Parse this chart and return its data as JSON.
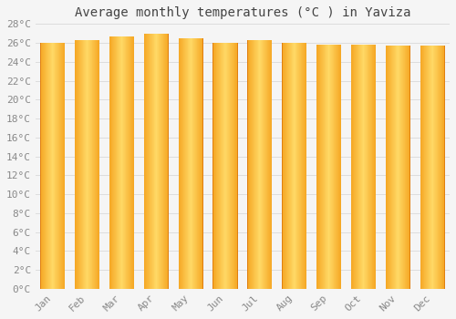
{
  "title": "Average monthly temperatures (°C ) in Yaviza",
  "months": [
    "Jan",
    "Feb",
    "Mar",
    "Apr",
    "May",
    "Jun",
    "Jul",
    "Aug",
    "Sep",
    "Oct",
    "Nov",
    "Dec"
  ],
  "values": [
    26.0,
    26.3,
    26.7,
    27.0,
    26.5,
    26.0,
    26.3,
    26.0,
    25.8,
    25.8,
    25.7,
    25.7
  ],
  "bar_color_center": "#FFD966",
  "bar_color_edge": "#F5A623",
  "background_color": "#F5F5F5",
  "grid_color": "#DDDDDD",
  "ylim": [
    0,
    28
  ],
  "ytick_step": 2,
  "title_fontsize": 10,
  "tick_fontsize": 8,
  "bar_width": 0.72,
  "figsize": [
    5.0,
    3.5
  ],
  "dpi": 100
}
